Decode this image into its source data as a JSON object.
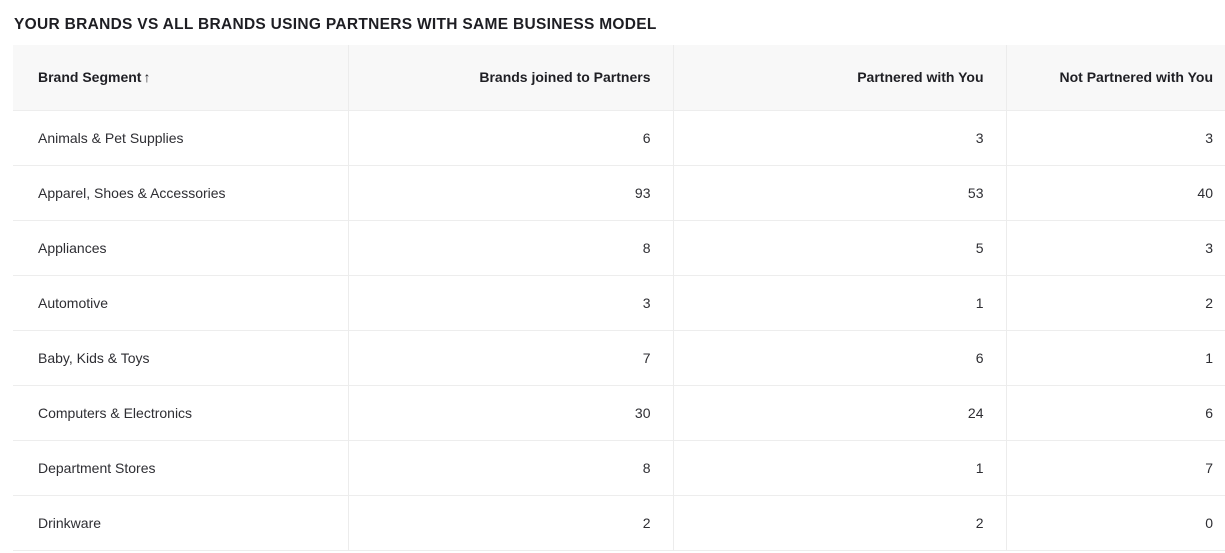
{
  "title": "YOUR BRANDS VS ALL BRANDS USING PARTNERS WITH SAME BUSINESS MODEL",
  "table": {
    "columns": [
      {
        "label": "Brand Segment",
        "sort_icon": "↑",
        "align": "left",
        "sorted": "ascending"
      },
      {
        "label": "Brands joined to Partners",
        "align": "right"
      },
      {
        "label": "Partnered with You",
        "align": "right"
      },
      {
        "label": "Not Partnered with You",
        "align": "right"
      }
    ],
    "rows": [
      {
        "cells": [
          "Animals & Pet Supplies",
          "6",
          "3",
          "3"
        ]
      },
      {
        "cells": [
          "Apparel, Shoes & Accessories",
          "93",
          "53",
          "40"
        ]
      },
      {
        "cells": [
          "Appliances",
          "8",
          "5",
          "3"
        ]
      },
      {
        "cells": [
          "Automotive",
          "3",
          "1",
          "2"
        ]
      },
      {
        "cells": [
          "Baby, Kids & Toys",
          "7",
          "6",
          "1"
        ]
      },
      {
        "cells": [
          "Computers & Electronics",
          "30",
          "24",
          "6"
        ]
      },
      {
        "cells": [
          "Department Stores",
          "8",
          "1",
          "7"
        ]
      },
      {
        "cells": [
          "Drinkware",
          "2",
          "2",
          "0"
        ]
      }
    ]
  },
  "colors": {
    "title_text": "#1e1e23",
    "header_background": "#f8f8f8",
    "header_text": "#1f1f24",
    "body_text": "#2e2e33",
    "divider": "#ececec",
    "row_separator": "#ededed",
    "page_background": "#ffffff"
  }
}
